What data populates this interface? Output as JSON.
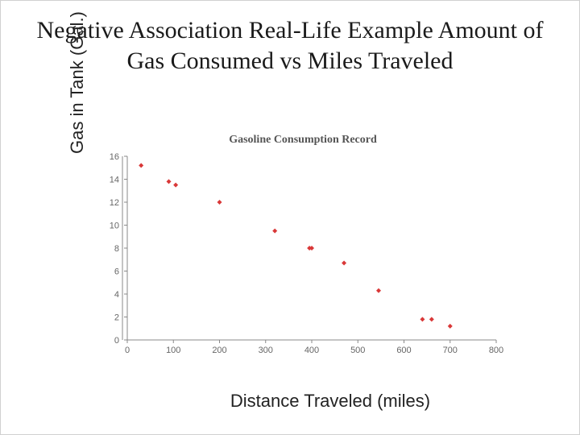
{
  "title": "Negative Association Real-Life Example Amount of Gas Consumed vs Miles Traveled",
  "chart": {
    "type": "scatter",
    "chart_title": "Gasoline Consumption Record",
    "chart_title_fontsize": 14,
    "xlabel": "Distance Traveled (miles)",
    "ylabel": "Gas in Tank (Gal.)",
    "axis_label_fontsize": 22,
    "xlim": [
      0,
      800
    ],
    "ylim": [
      0,
      16
    ],
    "xtick_step": 100,
    "ytick_step": 2,
    "tick_fontsize": 11,
    "background_color": "#ffffff",
    "axis_color": "#888888",
    "tick_color": "#666666",
    "marker_style": "diamond",
    "marker_size": 6,
    "marker_color": "#d93838",
    "points": [
      {
        "x": 30,
        "y": 15.2
      },
      {
        "x": 90,
        "y": 13.8
      },
      {
        "x": 105,
        "y": 13.5
      },
      {
        "x": 200,
        "y": 12.0
      },
      {
        "x": 320,
        "y": 9.5
      },
      {
        "x": 395,
        "y": 8.0
      },
      {
        "x": 400,
        "y": 8.0
      },
      {
        "x": 470,
        "y": 6.7
      },
      {
        "x": 545,
        "y": 4.3
      },
      {
        "x": 640,
        "y": 1.8
      },
      {
        "x": 660,
        "y": 1.8
      },
      {
        "x": 700,
        "y": 1.2
      }
    ]
  }
}
